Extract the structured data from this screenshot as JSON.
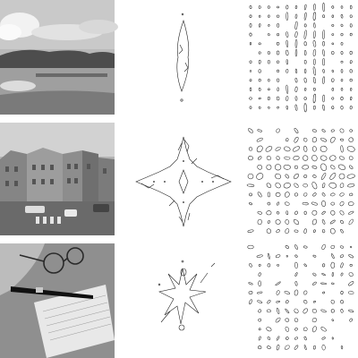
{
  "figure": {
    "rows": [
      {
        "photo": {
          "icon": "landscape-lake-hills-photo",
          "tone": "#9a9a9a"
        },
        "contour": {
          "shape": "narrow-vertical-spindle"
        },
        "grid": {
          "cols": 12,
          "rows": 12,
          "pattern": "sparse-vertical-ellipses"
        }
      },
      {
        "photo": {
          "icon": "street-buildings-cars-photo",
          "tone": "#a8a8a8"
        },
        "contour": {
          "shape": "four-pointed-star"
        },
        "grid": {
          "cols": 12,
          "rows": 12,
          "pattern": "dense-mixed-ellipses"
        }
      },
      {
        "photo": {
          "icon": "desk-glasses-pen-notebook-photo",
          "tone": "#8a8a8a"
        },
        "contour": {
          "shape": "irregular-x-burst"
        },
        "grid": {
          "cols": 12,
          "rows": 12,
          "pattern": "sparse-oriented-ellipses"
        }
      }
    ]
  }
}
